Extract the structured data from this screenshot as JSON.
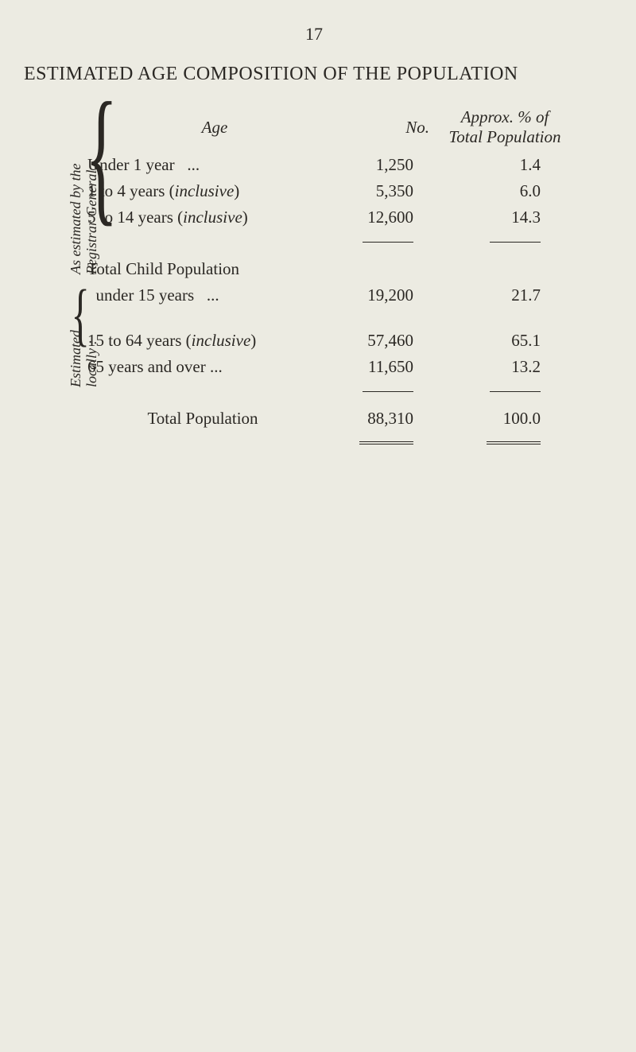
{
  "page_number": "17",
  "title": "ESTIMATED AGE COMPOSITION OF THE POPULATION",
  "columns": {
    "age": "Age",
    "no": "No.",
    "pct_line1": "Approx. % of",
    "pct_line2": "Total Population"
  },
  "side_labels": {
    "registrar_line1": "As estimated by the",
    "registrar_line2": "Registrar General:",
    "local_line1": "Estimated",
    "local_line2": "locally :"
  },
  "rows": {
    "under1": {
      "age_pre": "Under 1 year",
      "no": "1,250",
      "pct": "1.4"
    },
    "y1_4": {
      "age_pre": "1 to 4 years (",
      "age_it": "inclusive",
      "age_post": ")",
      "no": "5,350",
      "pct": "6.0"
    },
    "y5_14": {
      "age_pre": "5 to 14 years (",
      "age_it": "inclusive",
      "age_post": ")",
      "no": "12,600",
      "pct": "14.3"
    },
    "child_l1": {
      "label": "Total Child Population"
    },
    "child_l2": {
      "label": "under 15 years",
      "no": "19,200",
      "pct": "21.7"
    },
    "y15_64": {
      "age_pre": "15 to 64 years (",
      "age_it": "inclusive",
      "age_post": ")",
      "no": "57,460",
      "pct": "65.1"
    },
    "y65": {
      "age_pre": "65 years and over",
      "no": "11,650",
      "pct": "13.2"
    },
    "total": {
      "label": "Total Population",
      "no": "88,310",
      "pct": "100.0"
    }
  },
  "colors": {
    "background": "#ecebe2",
    "text": "#2b2824"
  }
}
